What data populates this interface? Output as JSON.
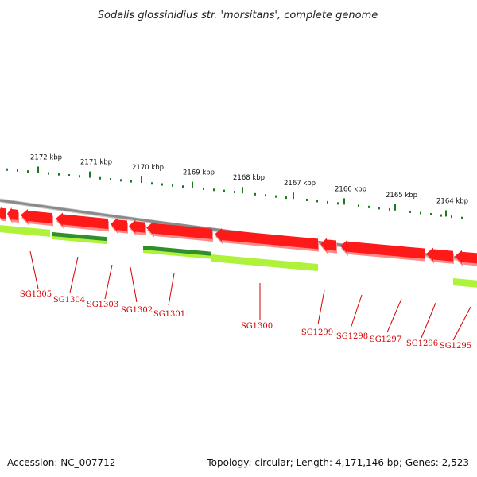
{
  "title": "Sodalis glossinidius str. 'morsitans', complete genome",
  "footer": {
    "accession_label": "Accession: NC_007712",
    "summary_label": "Topology: circular; Length: 4,171,146 bp; Genes: 2,523"
  },
  "scale": {
    "labels": [
      "2172 kbp",
      "2171 kbp",
      "2170 kbp",
      "2169 kbp",
      "2168 kbp",
      "2167 kbp",
      "2166 kbp",
      "2165 kbp",
      "2164 kbp"
    ]
  },
  "genes": [
    {
      "name": "SG1305"
    },
    {
      "name": "SG1304"
    },
    {
      "name": "SG1303"
    },
    {
      "name": "SG1302"
    },
    {
      "name": "SG1301"
    },
    {
      "name": "SG1300"
    },
    {
      "name": "SG1299"
    },
    {
      "name": "SG1298"
    },
    {
      "name": "SG1297"
    },
    {
      "name": "SG1296"
    },
    {
      "name": "SG1295"
    }
  ],
  "colors": {
    "cds": "#ff1a1a",
    "cds_shadow": "#ff8a8a",
    "backbone": "#8a8a8a",
    "tick": "#1e7a1e",
    "feature_green_dark": "#2f8f2f",
    "feature_green_light": "#aef23a",
    "label": "#d40000"
  }
}
